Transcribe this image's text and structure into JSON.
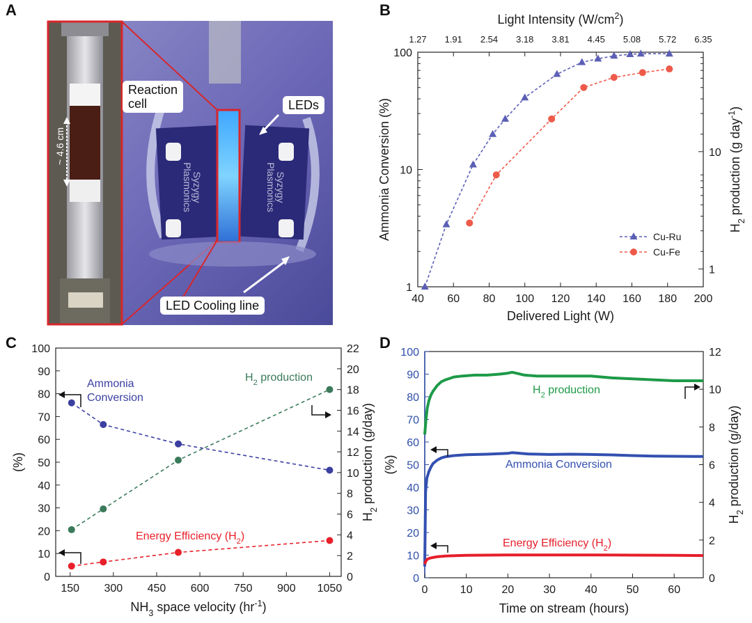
{
  "panels": {
    "a": {
      "letter": "A",
      "labels": {
        "reaction_cell": "Reaction\ncell",
        "leds": "LEDs",
        "cooling": "LED Cooling line",
        "scale": "~ 4.6 cm",
        "brand": "Syzygy\nPlasmonics"
      }
    },
    "b": {
      "letter": "B"
    },
    "c": {
      "letter": "C"
    },
    "d": {
      "letter": "D"
    }
  },
  "chart_data": [
    {
      "id": "B",
      "type": "line",
      "y_scale": "log",
      "xlabel": "Delivered Light (W)",
      "ylabel": "Ammonia Conversion (%)",
      "y2label_parts": [
        "H",
        "2",
        " production (g day",
        "-1",
        ")"
      ],
      "toplabel_parts": [
        "Light Intensity (W/cm",
        "2",
        ")"
      ],
      "xlim": [
        40,
        200
      ],
      "ylim": [
        1,
        100
      ],
      "x_ticks": [
        40,
        60,
        80,
        100,
        120,
        140,
        160,
        180,
        200
      ],
      "y_ticks": [
        {
          "v": 1,
          "l": "1"
        },
        {
          "v": 10,
          "l": "10"
        },
        {
          "v": 100,
          "l": "100"
        }
      ],
      "y2_ticks": [
        {
          "v": 1.42,
          "l": "1"
        },
        {
          "v": 14.2,
          "l": "10"
        }
      ],
      "top_ticks": [
        {
          "x": 40,
          "l": "1.27"
        },
        {
          "x": 60,
          "l": "1.91"
        },
        {
          "x": 80,
          "l": "2.54"
        },
        {
          "x": 100,
          "l": "3.18"
        },
        {
          "x": 120,
          "l": "3.81"
        },
        {
          "x": 140,
          "l": "4.45"
        },
        {
          "x": 160,
          "l": "5.08"
        },
        {
          "x": 180,
          "l": "5.72"
        },
        {
          "x": 200,
          "l": "6.35"
        }
      ],
      "legend_position": "lower-right",
      "series": [
        {
          "name": "Cu-Ru",
          "marker": "triangle",
          "color": "#5b5fb5",
          "x": [
            44,
            56,
            71,
            82,
            89,
            100,
            118,
            132,
            141,
            150,
            159,
            165,
            181
          ],
          "y": [
            1.0,
            3.4,
            11,
            20,
            27,
            41,
            65,
            82,
            88,
            93,
            96,
            97,
            97
          ]
        },
        {
          "name": "Cu-Fe",
          "marker": "circle",
          "color": "#ee5a4a",
          "x": [
            69,
            84,
            115,
            133,
            150,
            166,
            181
          ],
          "y": [
            3.5,
            9,
            27,
            50,
            61,
            67,
            72
          ]
        }
      ]
    },
    {
      "id": "C",
      "type": "line",
      "xlabel_parts": [
        "NH",
        "3",
        " space velocity (hr",
        "-1",
        ")"
      ],
      "ylabel": "(%)",
      "y2label_parts": [
        "H",
        "2",
        " production (g/day)"
      ],
      "xlim": [
        100,
        1090
      ],
      "ylim": [
        0,
        100
      ],
      "y2lim": [
        0,
        22
      ],
      "x_ticks": [
        150,
        300,
        450,
        600,
        750,
        900,
        1050
      ],
      "y_ticks": [
        0,
        10,
        20,
        30,
        40,
        50,
        60,
        70,
        80,
        90,
        100
      ],
      "y2_ticks": [
        0,
        2,
        4,
        6,
        8,
        10,
        12,
        14,
        16,
        18,
        20,
        22
      ],
      "annotations": {
        "ammonia": "Ammonia\nConversion",
        "h2_parts": [
          "H",
          "2",
          " production"
        ],
        "ee_parts": [
          "Energy Efficiency (H",
          "2",
          ")"
        ]
      },
      "series": [
        {
          "name": "Ammonia Conversion",
          "axis": "left",
          "color": "#3b3fa0",
          "x": [
            155,
            265,
            525,
            1050
          ],
          "y": [
            76,
            66.5,
            58,
            46.5
          ]
        },
        {
          "name": "H2 production",
          "axis": "right",
          "color": "#3a7a5a",
          "x": [
            155,
            265,
            525,
            1050
          ],
          "y": [
            4.5,
            6.5,
            11.2,
            18
          ]
        },
        {
          "name": "Energy Efficiency (H2)",
          "axis": "left",
          "color": "#e8202a",
          "x": [
            155,
            265,
            525,
            1050
          ],
          "y": [
            4.5,
            6.3,
            10.5,
            15.7
          ]
        }
      ]
    },
    {
      "id": "D",
      "type": "line",
      "xlabel": "Time on stream (hours)",
      "ylabel": "(%)",
      "y2label_parts": [
        "H",
        "2",
        " production (g/day)"
      ],
      "xlim": [
        0,
        67
      ],
      "ylim": [
        0,
        100
      ],
      "y2lim": [
        0,
        12
      ],
      "x_ticks": [
        0,
        10,
        20,
        30,
        40,
        50,
        60
      ],
      "y_ticks": [
        0,
        10,
        20,
        30,
        40,
        50,
        60,
        70,
        80,
        90,
        100
      ],
      "y2_ticks": [
        0,
        2,
        4,
        6,
        8,
        10,
        12
      ],
      "annotations": {
        "h2_parts": [
          "H",
          "2",
          " production"
        ],
        "ammonia": "Ammonia Conversion",
        "ee_parts": [
          "Energy Efficiency (H",
          "2",
          ")"
        ]
      },
      "series": [
        {
          "name": "H2 production",
          "axis": "right",
          "color": "#1e9a48",
          "x": [
            0,
            0.3,
            0.6,
            1,
            1.5,
            2,
            3,
            4,
            5,
            7,
            9,
            12,
            15,
            18,
            20,
            21,
            22,
            24,
            27,
            30,
            35,
            40,
            45,
            50,
            55,
            60,
            65,
            67
          ],
          "y": [
            7.6,
            8.4,
            9.0,
            9.4,
            9.7,
            9.9,
            10.2,
            10.4,
            10.5,
            10.65,
            10.7,
            10.75,
            10.75,
            10.8,
            10.85,
            10.9,
            10.85,
            10.75,
            10.7,
            10.7,
            10.7,
            10.7,
            10.6,
            10.55,
            10.5,
            10.45,
            10.45,
            10.45
          ]
        },
        {
          "name": "Ammonia Conversion",
          "axis": "left",
          "color": "#3350b0",
          "x": [
            0,
            0.2,
            0.5,
            1,
            1.5,
            2,
            3,
            4,
            5,
            7,
            10,
            15,
            20,
            21,
            25,
            30,
            35,
            40,
            45,
            50,
            55,
            60,
            65,
            67
          ],
          "y": [
            5,
            38,
            44,
            47,
            49,
            50.5,
            52,
            53,
            53.5,
            54,
            54.4,
            54.6,
            55,
            55.3,
            54.7,
            54.5,
            54.6,
            54.5,
            54.3,
            54,
            53.8,
            53.7,
            53.6,
            53.6
          ]
        },
        {
          "name": "Energy Efficiency (H2)",
          "axis": "left",
          "color": "#e61e2a",
          "x": [
            0,
            0.3,
            0.7,
            1.5,
            3,
            5,
            10,
            20,
            30,
            40,
            50,
            60,
            67
          ],
          "y": [
            6,
            7.5,
            8.3,
            8.8,
            9.3,
            9.6,
            9.9,
            10.1,
            10.1,
            10.1,
            10,
            9.9,
            9.8
          ]
        }
      ]
    }
  ]
}
